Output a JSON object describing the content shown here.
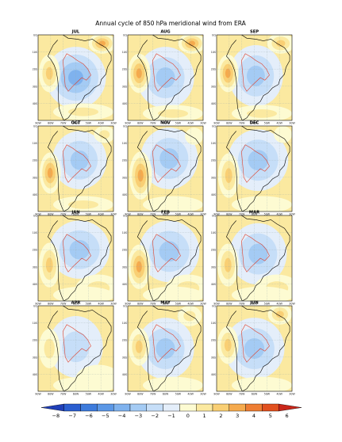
{
  "chart_data": {
    "type": "heatmap",
    "title": "Annual cycle of 850 hPa meridional wind from ERA",
    "layout": {
      "rows": 4,
      "cols": 3,
      "grid": true,
      "colorbar_placement": "bottom"
    },
    "panels": [
      "JUL",
      "AUG",
      "SEP",
      "OCT",
      "NOV",
      "DEC",
      "JAN",
      "FEB",
      "MAR",
      "APR",
      "MAY",
      "JUN"
    ],
    "x_ticks": [
      "90W",
      "80W",
      "70W",
      "60W",
      "50W",
      "40W",
      "30W"
    ],
    "y_ticks": [
      "EQ",
      "10S",
      "20S",
      "30S",
      "40S"
    ],
    "xlim": [
      -90,
      -30
    ],
    "ylim": [
      -45,
      10
    ],
    "colorbar": {
      "levels": [
        -8,
        -7,
        -6,
        -5,
        -4,
        -3,
        -2,
        -1,
        0,
        1,
        2,
        3,
        4,
        5,
        6
      ],
      "labels": [
        "−8",
        "−7",
        "−6",
        "−5",
        "−4",
        "−3",
        "−2",
        "−1",
        "0",
        "1",
        "2",
        "3",
        "4",
        "5",
        "6"
      ],
      "colors": [
        "#1f3fb8",
        "#2a5ed0",
        "#3d7bdc",
        "#5b97e6",
        "#7fb2ee",
        "#a4cbf4",
        "#c6def8",
        "#e4eefa",
        "#fdfbd2",
        "#fbe9a0",
        "#f9cf74",
        "#f5aa4d",
        "#ee7d33",
        "#e1501f",
        "#c9261a"
      ]
    }
  }
}
